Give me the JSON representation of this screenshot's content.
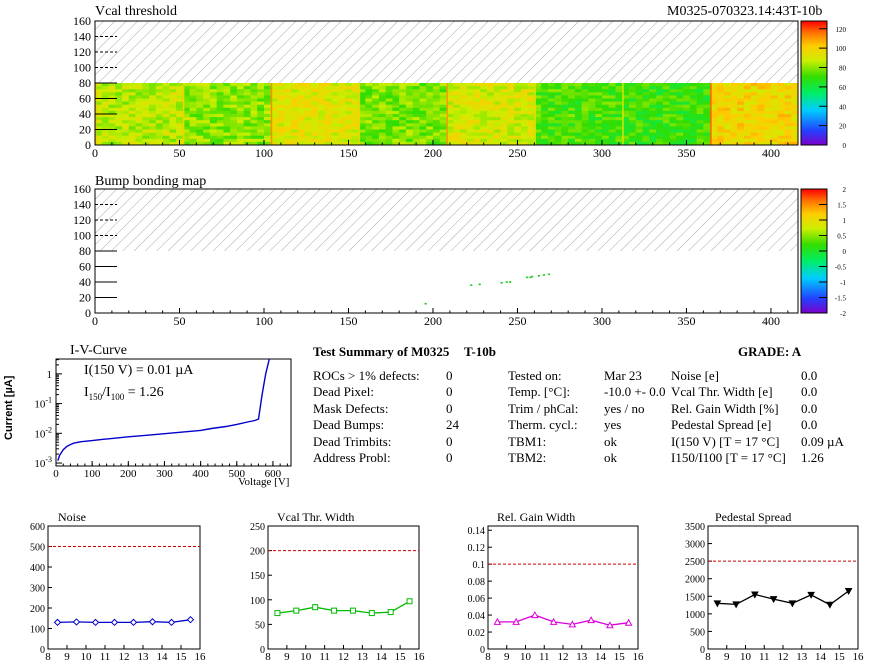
{
  "header": {
    "title": "Vcal threshold",
    "module_id": "M0325-070323.14:43T-10b"
  },
  "maps": [
    {
      "title": "Vcal threshold",
      "chart_data": {
        "type": "heatmap",
        "xlim": [
          0,
          416
        ],
        "ylim": [
          0,
          160
        ],
        "x_ticks": [
          "0",
          "50",
          "100",
          "150",
          "200",
          "250",
          "300",
          "350",
          "400"
        ],
        "y_ticks": [
          "0",
          "20",
          "40",
          "60",
          "80",
          "100",
          "120",
          "140",
          "160"
        ],
        "z_ticks": [
          "0",
          "20",
          "40",
          "60",
          "80",
          "100",
          "120"
        ],
        "zlim": [
          0,
          128
        ],
        "filled_rows": [
          0,
          80
        ],
        "empty_region": "hatched (rows 80-160)",
        "roc_blocks": [
          {
            "x": [
              0,
              52
            ],
            "level": 85
          },
          {
            "x": [
              52,
              104
            ],
            "level": 80
          },
          {
            "x": [
              104,
              156
            ],
            "level": 92
          },
          {
            "x": [
              156,
              208
            ],
            "level": 78
          },
          {
            "x": [
              208,
              260
            ],
            "level": 90
          },
          {
            "x": [
              260,
              312
            ],
            "level": 72
          },
          {
            "x": [
              312,
              364
            ],
            "level": 70
          },
          {
            "x": [
              364,
              416
            ],
            "level": 98
          }
        ]
      }
    },
    {
      "title": "Bump bonding map",
      "chart_data": {
        "type": "heatmap",
        "xlim": [
          0,
          416
        ],
        "ylim": [
          0,
          160
        ],
        "x_ticks": [
          "0",
          "50",
          "100",
          "150",
          "200",
          "250",
          "300",
          "350",
          "400"
        ],
        "y_ticks": [
          "0",
          "20",
          "40",
          "60",
          "80",
          "100",
          "120",
          "140",
          "160"
        ],
        "z_ticks": [
          "-2",
          "-1.5",
          "-1",
          "-0.5",
          "0",
          "0.5",
          "1",
          "1.5",
          "2"
        ],
        "zlim": [
          -2,
          2
        ],
        "filled_rows": [
          0,
          80
        ],
        "empty_region": "hatched (rows 80-160)",
        "dead_bumps_xy": [
          [
            195,
            13
          ],
          [
            222,
            37
          ],
          [
            227,
            38
          ],
          [
            240,
            40
          ],
          [
            243,
            41
          ],
          [
            245,
            41
          ],
          [
            255,
            47
          ],
          [
            257,
            47
          ],
          [
            258,
            48
          ],
          [
            262,
            49
          ],
          [
            265,
            50
          ],
          [
            268,
            51
          ]
        ]
      }
    }
  ],
  "iv_curve": {
    "title": "I-V-Curve",
    "ylabel": "Current [µA]",
    "xlabel": "Voltage [V]",
    "annotation_line1": "I(150 V) = 0.01 µA",
    "annotation_line2_a": "I",
    "annotation_line2_sub1": "150",
    "annotation_line2_b": "/I",
    "annotation_line2_sub2": "100",
    "annotation_line2_c": " = 1.26",
    "chart_data": {
      "type": "line",
      "x_ticks": [
        "0",
        "100",
        "200",
        "300",
        "400",
        "500",
        "600"
      ],
      "y_ticks_base": "10",
      "y_ticks_exp": [
        "-3",
        "-2",
        "-1",
        ""
      ],
      "y_tick_top": "1",
      "xlim": [
        0,
        650
      ],
      "ylim_log10": [
        -3.1,
        0.5
      ],
      "x": [
        5,
        10,
        20,
        30,
        40,
        50,
        70,
        100,
        130,
        160,
        200,
        250,
        300,
        350,
        400,
        430,
        470,
        500,
        530,
        550,
        560,
        570,
        580,
        590
      ],
      "y": [
        0.0012,
        0.0018,
        0.0028,
        0.0036,
        0.0042,
        0.0047,
        0.0052,
        0.0057,
        0.0063,
        0.0068,
        0.0076,
        0.0086,
        0.0097,
        0.011,
        0.0125,
        0.0145,
        0.017,
        0.02,
        0.024,
        0.027,
        0.03,
        0.2,
        1.0,
        3.2
      ]
    }
  },
  "summary": {
    "title": "Test Summary of M0325",
    "variant": "T-10b",
    "grade": "GRADE:  A",
    "col1": [
      {
        "label": "ROCs > 1% defects:",
        "value": "0"
      },
      {
        "label": "Dead Pixel:",
        "value": "0"
      },
      {
        "label": "Mask Defects:",
        "value": "0"
      },
      {
        "label": "Dead Bumps:",
        "value": "24"
      },
      {
        "label": "Dead Trimbits:",
        "value": "0"
      },
      {
        "label": "Address Probl:",
        "value": "0"
      }
    ],
    "col2": [
      {
        "label": "Tested on:",
        "value": "Mar 23"
      },
      {
        "label": "Temp. [°C]:",
        "value": "-10.0 +- 0.0"
      },
      {
        "label": "Trim / phCal:",
        "value": "yes / no"
      },
      {
        "label": "Therm. cycl.:",
        "value": "yes"
      },
      {
        "label": "TBM1:",
        "value": "ok"
      },
      {
        "label": "TBM2:",
        "value": "ok"
      }
    ],
    "col3": [
      {
        "label": "Noise [e]",
        "value": "0.0"
      },
      {
        "label": "Vcal Thr. Width [e]",
        "value": "0.0"
      },
      {
        "label": "Rel. Gain Width [%]",
        "value": "0.0"
      },
      {
        "label": "Pedestal Spread [e]",
        "value": "0.0"
      },
      {
        "label": "I(150 V) [T = 17 °C]",
        "value": "0.09 µA"
      },
      {
        "label": "I150/I100  [T = 17 °C]",
        "value": "1.26"
      }
    ]
  },
  "small_plots": [
    {
      "title": "Noise",
      "chart_data": {
        "type": "line",
        "x": [
          8.5,
          9.5,
          10.5,
          11.5,
          12.5,
          13.5,
          14.5,
          15.5
        ],
        "values": [
          130,
          132,
          130,
          130,
          130,
          133,
          130,
          143
        ],
        "ylim": [
          0,
          600
        ],
        "y_ticks": [
          "0",
          "100",
          "200",
          "300",
          "400",
          "500",
          "600"
        ],
        "threshold": 500,
        "color": "#0000cc",
        "marker": "diamond-open"
      }
    },
    {
      "title": "Vcal Thr. Width",
      "chart_data": {
        "type": "line",
        "x": [
          8.5,
          9.5,
          10.5,
          11.5,
          12.5,
          13.5,
          14.5,
          15.5
        ],
        "values": [
          73,
          78,
          85,
          78,
          78,
          73,
          75,
          97
        ],
        "ylim": [
          0,
          250
        ],
        "y_ticks": [
          "0",
          "50",
          "100",
          "150",
          "200",
          "250"
        ],
        "threshold": 200,
        "color": "#00bb00",
        "marker": "square-open"
      }
    },
    {
      "title": "Rel. Gain Width",
      "chart_data": {
        "type": "line",
        "x": [
          8.5,
          9.5,
          10.5,
          11.5,
          12.5,
          13.5,
          14.5,
          15.5
        ],
        "values": [
          0.032,
          0.032,
          0.04,
          0.032,
          0.029,
          0.034,
          0.028,
          0.031
        ],
        "ylim": [
          0,
          0.145
        ],
        "y_ticks": [
          "0",
          "0.02",
          "0.04",
          "0.06",
          "0.08",
          "0.1",
          "0.12",
          "0.14"
        ],
        "threshold": 0.1,
        "color": "#dd00dd",
        "marker": "triangle-open"
      }
    },
    {
      "title": "Pedestal Spread",
      "chart_data": {
        "type": "line",
        "x": [
          8.5,
          9.5,
          10.5,
          11.5,
          12.5,
          13.5,
          14.5,
          15.5
        ],
        "values": [
          1300,
          1270,
          1550,
          1420,
          1300,
          1540,
          1260,
          1650
        ],
        "ylim": [
          0,
          3500
        ],
        "y_ticks": [
          "0",
          "500",
          "1000",
          "1500",
          "2000",
          "2500",
          "3000",
          "3500"
        ],
        "threshold": 2500,
        "color": "#000000",
        "marker": "triangle-down-filled"
      }
    }
  ],
  "small_plot_x_ticks": [
    "8",
    "9",
    "10",
    "11",
    "12",
    "13",
    "14",
    "15",
    "16"
  ],
  "colors": {
    "threshold_line": "#cc0000",
    "frame": "#000000",
    "hatch": "#999999"
  }
}
